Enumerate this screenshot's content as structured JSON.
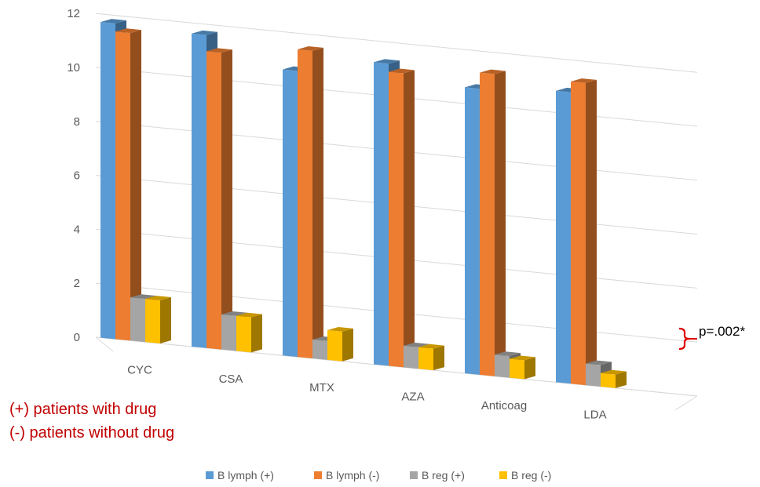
{
  "chart_data": {
    "type": "bar",
    "categories": [
      "CYC",
      "CSA",
      "MTX",
      "AZA",
      "Anticoag",
      "LDA"
    ],
    "series": [
      {
        "name": "B lymph (+)",
        "color": "#5b9bd5",
        "values": [
          11.7,
          11.6,
          10.6,
          11.2,
          10.6,
          10.8
        ]
      },
      {
        "name": "B lymph (-)",
        "color": "#ed7d31",
        "values": [
          11.4,
          11.0,
          11.4,
          10.9,
          11.2,
          11.2
        ]
      },
      {
        "name": "B reg (+)",
        "color": "#a5a5a5",
        "values": [
          1.6,
          1.3,
          0.7,
          0.8,
          0.8,
          0.8
        ]
      },
      {
        "name": "B reg (-)",
        "color": "#ffc000",
        "values": [
          1.6,
          1.3,
          1.1,
          0.8,
          0.7,
          0.5
        ]
      }
    ],
    "ylim": [
      0,
      12
    ],
    "yticks": [
      "0",
      "2",
      "4",
      "6",
      "8",
      "10",
      "12"
    ],
    "grid": true,
    "legend_position": "bottom",
    "annotation": "p=.002*",
    "notes": [
      "(+) patients with drug",
      "(-) patients without drug"
    ]
  }
}
